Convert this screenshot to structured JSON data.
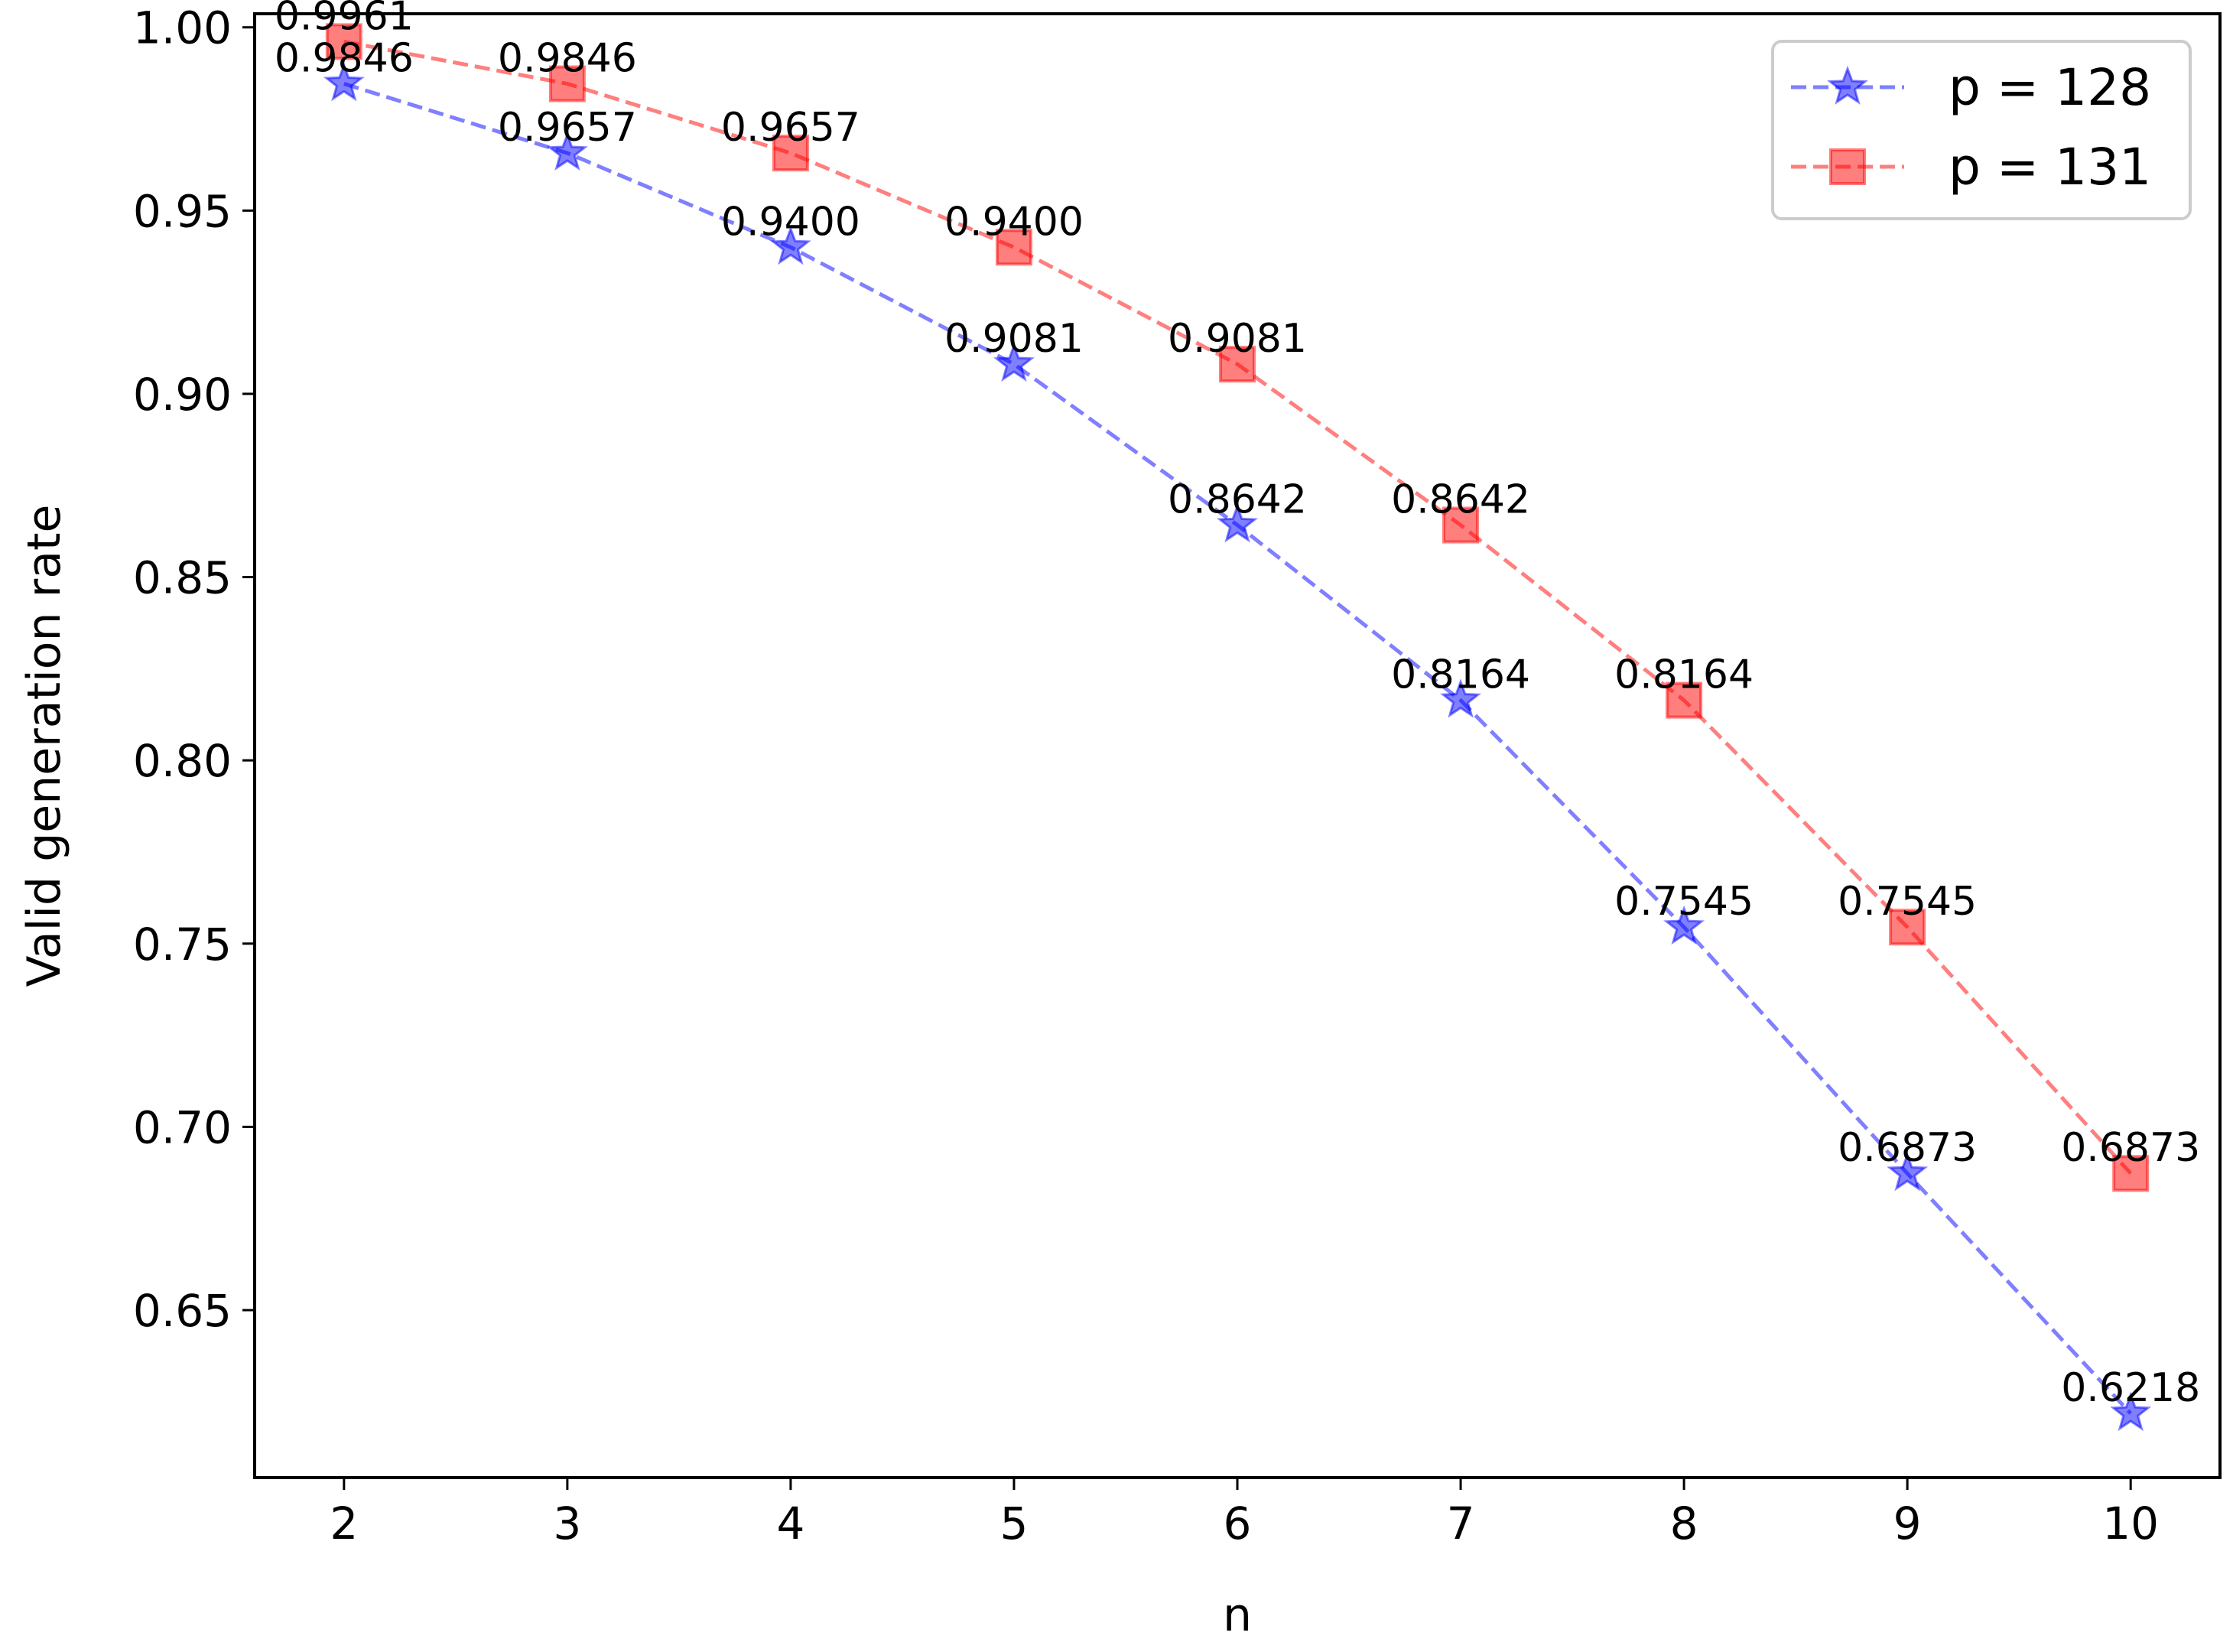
{
  "chart_data": {
    "type": "line",
    "title": "",
    "xlabel": "n",
    "ylabel": "Valid generation rate",
    "x": [
      2,
      3,
      4,
      5,
      6,
      7,
      8,
      9,
      10
    ],
    "x_tick_labels": [
      "2",
      "3",
      "4",
      "5",
      "6",
      "7",
      "8",
      "9",
      "10"
    ],
    "xlim": [
      1.6,
      10.4
    ],
    "ylim": [
      0.6043,
      1.0037
    ],
    "y_ticks": [
      0.65,
      0.7,
      0.75,
      0.8,
      0.85,
      0.9,
      0.95,
      1.0
    ],
    "y_tick_labels": [
      "0.65",
      "0.70",
      "0.75",
      "0.80",
      "0.85",
      "0.90",
      "0.95",
      "1.00"
    ],
    "grid": false,
    "legend_position": "top-right",
    "series": [
      {
        "name": "p = 128",
        "color": "#0000ff",
        "marker": "star",
        "linestyle": "dashed",
        "values": [
          0.9846,
          0.9657,
          0.94,
          0.9081,
          0.8642,
          0.8164,
          0.7545,
          0.6873,
          0.6218
        ],
        "labels": [
          "0.9846",
          "0.9657",
          "0.9400",
          "0.9081",
          "0.8642",
          "0.8164",
          "0.7545",
          "0.6873",
          "0.6218"
        ]
      },
      {
        "name": "p = 131",
        "color": "#ff0000",
        "marker": "square",
        "linestyle": "dashed",
        "values": [
          0.9961,
          0.9846,
          0.9657,
          0.94,
          0.9081,
          0.8642,
          0.8164,
          0.7545,
          0.6873
        ],
        "labels": [
          "0.9961",
          "0.9846",
          "0.9657",
          "0.9400",
          "0.9081",
          "0.8642",
          "0.8164",
          "0.7545",
          "0.6873"
        ]
      }
    ]
  }
}
